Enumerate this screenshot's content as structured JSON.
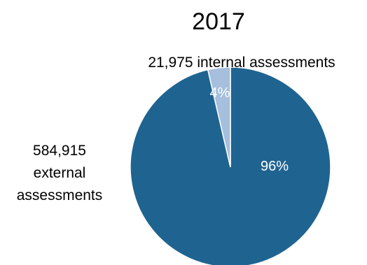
{
  "chart_data": {
    "type": "pie",
    "title": "2017",
    "slices": [
      {
        "label": "584,915 external assessments",
        "label_lines": [
          "584,915",
          "external",
          "assessments"
        ],
        "value": 584915,
        "percent_label": "96%",
        "color": "#1f6491"
      },
      {
        "label": "21,975 internal assessments",
        "label_lines": [
          "21,975 internal assessments"
        ],
        "value": 21975,
        "percent_label": "4%",
        "color": "#a5bfdd"
      }
    ],
    "legend": "none"
  }
}
